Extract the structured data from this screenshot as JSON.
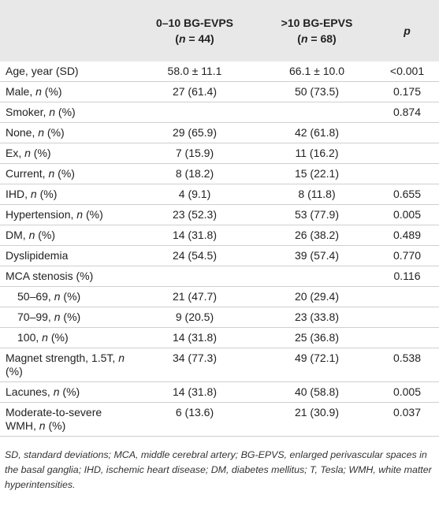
{
  "table": {
    "header": [
      null,
      {
        "title": "0–10 BG-EVPS",
        "n": "(n = 44)"
      },
      {
        "title": ">10 BG-EPVS",
        "n": "(n = 68)"
      },
      "p"
    ],
    "rows": [
      [
        "Age, year (SD)",
        "58.0 ± 11.1",
        "66.1 ± 10.0",
        "<0.001"
      ],
      [
        "Male, n (%)",
        "27 (61.4)",
        "50 (73.5)",
        "0.175"
      ],
      [
        "Smoker, n (%)",
        null,
        null,
        "0.874"
      ],
      [
        "None, n (%)",
        "29 (65.9)",
        "42 (61.8)",
        null
      ],
      [
        "Ex, n (%)",
        "7 (15.9)",
        "11 (16.2)",
        null
      ],
      [
        "Current, n (%)",
        "8 (18.2)",
        "15 (22.1)",
        null
      ],
      [
        "IHD, n (%)",
        "4 (9.1)",
        "8 (11.8)",
        "0.655"
      ],
      [
        "Hypertension, n (%)",
        "23 (52.3)",
        "53 (77.9)",
        "0.005"
      ],
      [
        "DM, n (%)",
        "14 (31.8)",
        "26 (38.2)",
        "0.489"
      ],
      [
        "Dyslipidemia",
        "24 (54.5)",
        "39 (57.4)",
        "0.770"
      ],
      [
        "MCA stenosis (%)",
        null,
        null,
        "0.116"
      ],
      [
        "50–69, n (%)",
        "21 (47.7)",
        "20 (29.4)",
        null
      ],
      [
        "70–99, n (%)",
        "9 (20.5)",
        "23 (33.8)",
        null
      ],
      [
        "100, n (%)",
        "14 (31.8)",
        "25 (36.8)",
        null
      ],
      [
        "Magnet strength, 1.5T, n (%)",
        "34 (77.3)",
        "49 (72.1)",
        "0.538"
      ],
      [
        "Lacunes, n (%)",
        "14 (31.8)",
        "40 (58.8)",
        "0.005"
      ],
      [
        "Moderate-to-severe WMH, n (%)",
        "6 (13.6)",
        "21 (30.9)",
        "0.037"
      ]
    ],
    "footnote": "SD, standard deviations; MCA, middle cerebral artery; BG-EPVS, enlarged perivascular spaces in the basal ganglia; IHD, ischemic heart disease; DM, diabetes mellitus; T, Tesla; WMH, white matter hyperintensities."
  }
}
